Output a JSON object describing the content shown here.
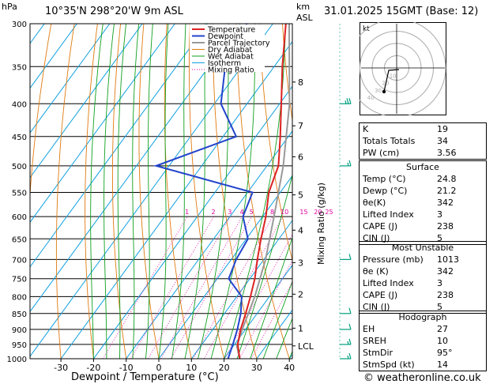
{
  "header": {
    "location": "10°35'N  298°20'W  9m  ASL",
    "datetime": "31.01.2025  15GMT  (Base: 12)",
    "hpa_label": "hPa",
    "km_label": "km",
    "asl_label": "ASL",
    "footer": "© weatheronline.co.uk"
  },
  "chart_data": {
    "type": "skew-t",
    "xlabel": "Dewpoint / Temperature (°C)",
    "right_axis_label": "Mixing Ratio (g/kg)",
    "pressure_levels": [
      300,
      350,
      400,
      450,
      500,
      550,
      600,
      650,
      700,
      750,
      800,
      850,
      900,
      950,
      1000
    ],
    "temperature_ticks": [
      -30,
      -20,
      -10,
      0,
      10,
      20,
      30,
      40
    ],
    "km_ticks": [
      {
        "label": "8",
        "p": 370
      },
      {
        "label": "7",
        "p": 433
      },
      {
        "label": "6",
        "p": 484
      },
      {
        "label": "5",
        "p": 555
      },
      {
        "label": "4",
        "p": 630
      },
      {
        "label": "3",
        "p": 708
      },
      {
        "label": "2",
        "p": 793
      },
      {
        "label": "1",
        "p": 896
      },
      {
        "label": "LCL",
        "p": 955
      }
    ],
    "mixing_ratio_labels": [
      "1",
      "2",
      "3",
      "4",
      "5",
      "8",
      "10",
      "15",
      "20",
      "25"
    ],
    "legend": [
      "Temperature",
      "Dewpoint",
      "Parcel Trajectory",
      "Dry Adiabat",
      "Wet Adiabat",
      "Isotherm",
      "Mixing Ratio"
    ],
    "temperature_profile": [
      {
        "p": 1000,
        "t": 24.8
      },
      {
        "p": 950,
        "t": 21.0
      },
      {
        "p": 900,
        "t": 18.5
      },
      {
        "p": 850,
        "t": 16.5
      },
      {
        "p": 800,
        "t": 14.2
      },
      {
        "p": 750,
        "t": 11.5
      },
      {
        "p": 700,
        "t": 8.0
      },
      {
        "p": 650,
        "t": 4.5
      },
      {
        "p": 600,
        "t": 1.0
      },
      {
        "p": 550,
        "t": -3.5
      },
      {
        "p": 500,
        "t": -6.5
      },
      {
        "p": 450,
        "t": -12.5
      },
      {
        "p": 400,
        "t": -19.5
      },
      {
        "p": 350,
        "t": -27.5
      },
      {
        "p": 300,
        "t": -36.0
      }
    ],
    "dewpoint_profile": [
      {
        "p": 1000,
        "t": 21.2
      },
      {
        "p": 950,
        "t": 19.5
      },
      {
        "p": 900,
        "t": 17.5
      },
      {
        "p": 850,
        "t": 15.0
      },
      {
        "p": 800,
        "t": 11.5
      },
      {
        "p": 750,
        "t": 3.5
      },
      {
        "p": 700,
        "t": 1.5
      },
      {
        "p": 650,
        "t": 0.5
      },
      {
        "p": 600,
        "t": -6.0
      },
      {
        "p": 550,
        "t": -8.5
      },
      {
        "p": 500,
        "t": -44.0
      },
      {
        "p": 450,
        "t": -26.0
      },
      {
        "p": 400,
        "t": -38.0
      },
      {
        "p": 350,
        "t": -45.0
      },
      {
        "p": 300,
        "t": -48.0
      }
    ],
    "parcel_profile": [
      {
        "p": 1000,
        "t": 24.8
      },
      {
        "p": 955,
        "t": 21.0
      },
      {
        "p": 900,
        "t": 19.0
      },
      {
        "p": 800,
        "t": 15.5
      },
      {
        "p": 700,
        "t": 10.5
      },
      {
        "p": 600,
        "t": 3.5
      },
      {
        "p": 500,
        "t": -5.0
      },
      {
        "p": 400,
        "t": -17.0
      },
      {
        "p": 300,
        "t": -35.0
      }
    ],
    "colors": {
      "temperature": "#dd2222",
      "dewpoint": "#2244cc",
      "parcel": "#999999",
      "dry_adiabat": "#e07a10",
      "wet_adiabat": "#10a020",
      "isotherm": "#10a0e0",
      "mixing_ratio": "#e000a0",
      "wind": "#00a080"
    },
    "wind_barbs": [
      {
        "p": 400,
        "spd": 25,
        "dir": 260
      },
      {
        "p": 500,
        "spd": 15,
        "dir": 250
      },
      {
        "p": 700,
        "spd": 10,
        "dir": 100
      },
      {
        "p": 850,
        "spd": 10,
        "dir": 95
      },
      {
        "p": 900,
        "spd": 10,
        "dir": 95
      },
      {
        "p": 950,
        "spd": 15,
        "dir": 95
      },
      {
        "p": 1000,
        "spd": 15,
        "dir": 95
      }
    ]
  },
  "hodograph": {
    "label": "kt",
    "ring_labels": [
      "10",
      "20",
      "30",
      "40"
    ],
    "speeds": [
      20
    ]
  },
  "indices": {
    "top": [
      {
        "name": "K",
        "value": "19"
      },
      {
        "name": "Totals Totals",
        "value": "34"
      },
      {
        "name": "PW (cm)",
        "value": "3.56"
      }
    ],
    "surface_title": "Surface",
    "surface": [
      {
        "name": "Temp (°C)",
        "value": "24.8"
      },
      {
        "name": "Dewp (°C)",
        "value": "21.2"
      },
      {
        "name": "θe(K)",
        "value": "342"
      },
      {
        "name": "Lifted Index",
        "value": "3"
      },
      {
        "name": "CAPE (J)",
        "value": "238"
      },
      {
        "name": "CIN (J)",
        "value": "5"
      }
    ],
    "unstable_title": "Most Unstable",
    "unstable": [
      {
        "name": "Pressure (mb)",
        "value": "1013"
      },
      {
        "name": "θe (K)",
        "value": "342"
      },
      {
        "name": "Lifted Index",
        "value": "3"
      },
      {
        "name": "CAPE (J)",
        "value": "238"
      },
      {
        "name": "CIN (J)",
        "value": "5"
      }
    ],
    "hodo_title": "Hodograph",
    "hodo": [
      {
        "name": "EH",
        "value": "27"
      },
      {
        "name": "SREH",
        "value": "10"
      },
      {
        "name": "StmDir",
        "value": "95°"
      },
      {
        "name": "StmSpd (kt)",
        "value": "14"
      }
    ]
  }
}
